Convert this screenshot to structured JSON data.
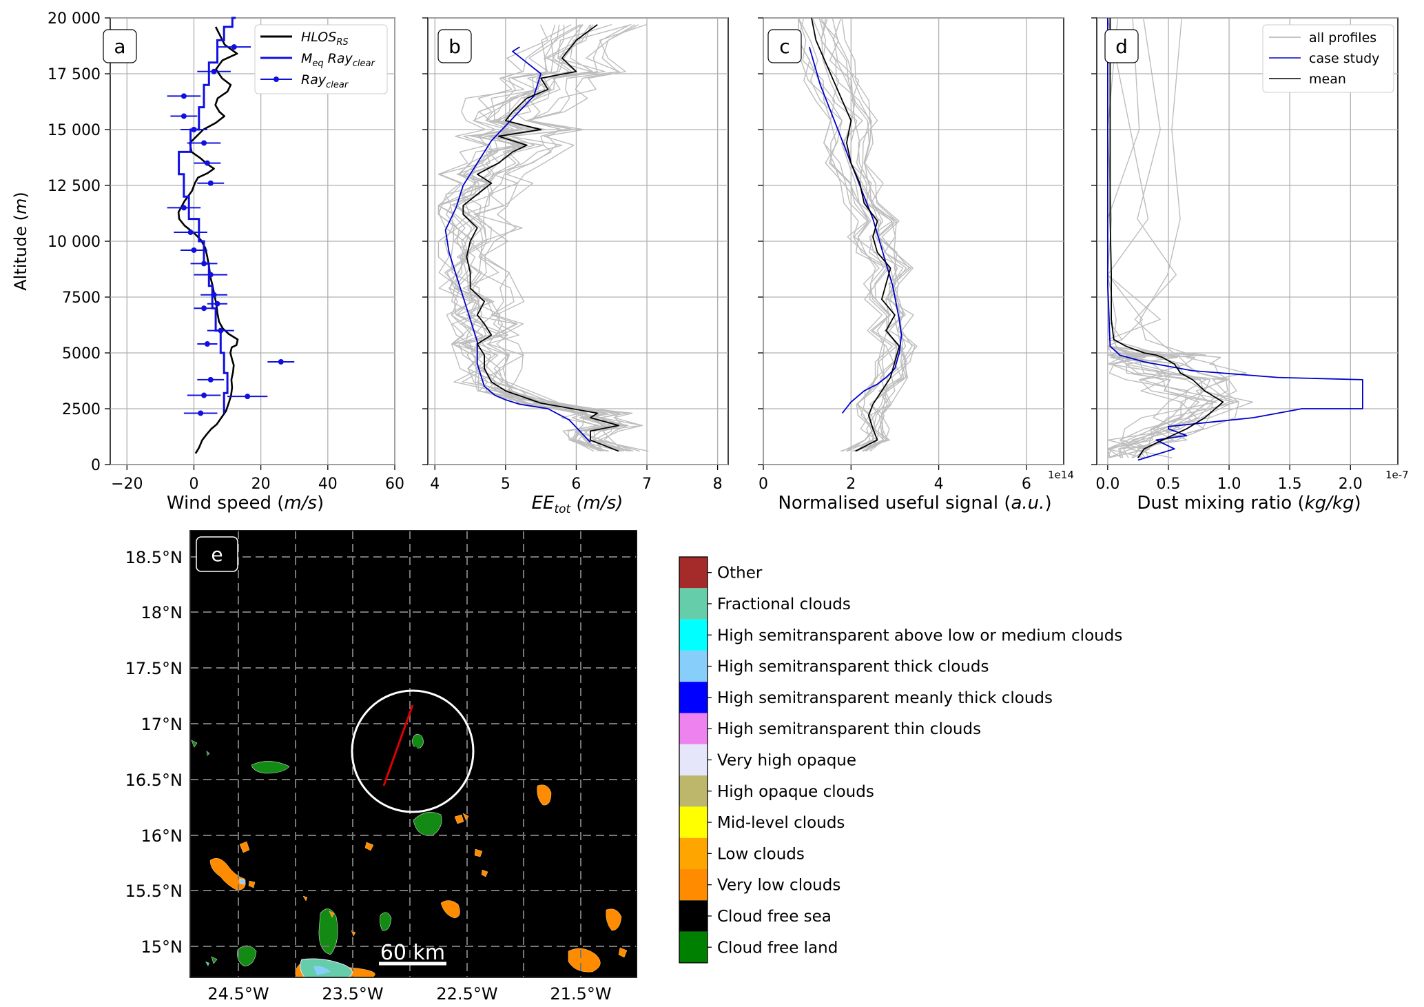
{
  "chart_data": [
    {
      "panel": "a",
      "type": "line",
      "xlabel": "Wind speed (m/s)",
      "ylabel": "Altitude (m)",
      "xlim": [
        -25,
        60
      ],
      "ylim": [
        0,
        20000
      ],
      "xticks": [
        -20,
        0,
        20,
        40,
        60
      ],
      "yticks": [
        0,
        2500,
        5000,
        7500,
        10000,
        12500,
        15000,
        17500,
        20000
      ],
      "ytick_labels": [
        "0",
        "2500",
        "5000",
        "7500",
        "10 000",
        "12 500",
        "15 000",
        "17 500",
        "20 000"
      ],
      "grid": true,
      "legend_position": "top-right",
      "series": [
        {
          "name": "HLOS_RS",
          "style": "line",
          "color": "#000000",
          "x": [
            0.5,
            1.5,
            2.5,
            3.8,
            5.2,
            6.8,
            8.2,
            9.6,
            10.5,
            11.1,
            11.4,
            11.2,
            11.7,
            11.9,
            11.4,
            10.9,
            11.3,
            12.7,
            13.1,
            10.4,
            8.6,
            7.5,
            7.0,
            6.7,
            6.1,
            5.6,
            4.9,
            4.6,
            4.0,
            3.4,
            2.1,
            0.2,
            -2.8,
            -4.4,
            -4.6,
            -2.8,
            -0.6,
            0.3,
            1.2,
            4.1,
            6.0,
            4.0,
            2.1,
            -0.7,
            -1.2,
            0.8,
            2.8,
            6.5,
            9.1,
            7.6,
            6.4,
            7.1,
            10.0,
            11.0,
            8.4,
            6.6,
            8.5,
            12.9,
            9.2,
            6.5
          ],
          "y": [
            500,
            750,
            1100,
            1350,
            1600,
            1800,
            2100,
            2400,
            2800,
            3100,
            3450,
            3800,
            4150,
            4450,
            4700,
            5000,
            5250,
            5350,
            5600,
            5850,
            6100,
            6400,
            6800,
            7200,
            7600,
            8000,
            8400,
            8800,
            9300,
            9700,
            10050,
            10350,
            10700,
            11000,
            11300,
            11800,
            12250,
            12600,
            12850,
            13050,
            13250,
            13450,
            13700,
            14000,
            14400,
            14700,
            15000,
            15300,
            15600,
            15800,
            16100,
            16400,
            16700,
            17000,
            17300,
            17700,
            18100,
            18400,
            18800,
            19600
          ]
        },
        {
          "name": "M_eq Ray_clear",
          "style": "step",
          "color": "#1010e0",
          "x": [
            9.0,
            10.0,
            9.0,
            8.0,
            6.5,
            5.5,
            4.5,
            3.0,
            1.5,
            -1.5,
            -3.0,
            -4.5,
            -1.0,
            1.5,
            3.0,
            4.5,
            7.0,
            9.0,
            11.5,
            12.5
          ],
          "y": [
            2300,
            3200,
            4100,
            5000,
            6000,
            7000,
            8000,
            9000,
            10000,
            11000,
            12000,
            13000,
            14000,
            15000,
            16000,
            17000,
            18000,
            19000,
            19600,
            20000
          ]
        },
        {
          "name": "Ray_clear",
          "style": "errorbar",
          "color": "#1010e0",
          "x": [
            2,
            3,
            16,
            26,
            5,
            4,
            8,
            3,
            7,
            6,
            5,
            3,
            0,
            -1,
            -3,
            5,
            4,
            3,
            0,
            -3,
            -3,
            6,
            12
          ],
          "y": [
            2300,
            3100,
            3050,
            4600,
            3800,
            5400,
            6000,
            7000,
            7200,
            7600,
            8500,
            9000,
            9600,
            10400,
            11500,
            12600,
            13500,
            14400,
            15000,
            15600,
            16500,
            17600,
            18700
          ],
          "xerr": [
            5,
            5,
            6,
            4,
            4,
            3,
            4,
            3,
            3,
            4,
            5,
            4,
            4,
            5,
            5,
            4,
            4,
            5,
            4,
            4,
            5,
            5,
            5
          ]
        }
      ]
    },
    {
      "panel": "b",
      "type": "line",
      "xlabel": "EE_tot (m/s)",
      "xlim": [
        3.9,
        8.15
      ],
      "ylim": [
        0,
        20000
      ],
      "xticks": [
        4,
        5,
        6,
        7,
        8
      ],
      "grid": true,
      "series": [
        {
          "name": "",
          "color": "#0000cc",
          "x": [
            6.2,
            5.9,
            5.6,
            5.2,
            5.0,
            4.85,
            4.7,
            4.6,
            4.6,
            4.5,
            4.4,
            4.3,
            4.2,
            4.15,
            4.3,
            4.4,
            4.6,
            4.8,
            5.1,
            5.4,
            5.5,
            5.1,
            5.2
          ],
          "y": [
            1000,
            2000,
            2500,
            2700,
            2900,
            3100,
            3500,
            4500,
            5500,
            6500,
            7500,
            8500,
            9500,
            10500,
            11500,
            12500,
            13500,
            14500,
            15500,
            16500,
            17500,
            18500,
            18700
          ]
        },
        {
          "name": "",
          "color": "#000000",
          "x": [
            6.6,
            6.2,
            6.2,
            6.6,
            6.2,
            6.3,
            5.5,
            5.0,
            4.8,
            4.7,
            4.7,
            4.6,
            4.8,
            4.7,
            4.6,
            4.7,
            4.5,
            4.5,
            4.45,
            4.5,
            4.6,
            4.4,
            4.4,
            4.6,
            4.8,
            4.6,
            4.9,
            5.1,
            5.3,
            4.9,
            5.5,
            5.0,
            5.1,
            5.3,
            5.6,
            5.5,
            6.0,
            5.8,
            6.0,
            6.3
          ],
          "y": [
            600,
            1100,
            1500,
            1750,
            2100,
            2300,
            2750,
            3300,
            3700,
            4300,
            4900,
            5400,
            5800,
            6300,
            6700,
            7300,
            7900,
            8600,
            9300,
            10000,
            10600,
            11200,
            11600,
            12100,
            12600,
            13000,
            13500,
            14000,
            14300,
            14700,
            15000,
            15400,
            15800,
            16400,
            16800,
            17300,
            17600,
            18200,
            19000,
            19700
          ]
        }
      ]
    },
    {
      "panel": "c",
      "type": "line",
      "xlabel": "Normalised useful signal (a.u.)",
      "xlim": [
        0,
        6.85
      ],
      "ylim": [
        0,
        20000
      ],
      "xticks": [
        0,
        2,
        4,
        6
      ],
      "x_multiplier_label": "1e14",
      "grid": true,
      "series": [
        {
          "name": "",
          "color": "#0000cc",
          "x": [
            1.8,
            2.0,
            2.3,
            2.6,
            2.8,
            3.0,
            3.1,
            3.15,
            3.1,
            3.05,
            2.95,
            2.8,
            2.65,
            2.5,
            2.3,
            2.1,
            1.9,
            1.7,
            1.5,
            1.3,
            1.05
          ],
          "y": [
            2300,
            2800,
            3300,
            3600,
            3900,
            4300,
            5000,
            5800,
            6500,
            7000,
            8000,
            9000,
            10000,
            11000,
            12000,
            13000,
            14000,
            15000,
            16000,
            17000,
            18700
          ]
        },
        {
          "name": "",
          "color": "#000000",
          "x": [
            2.1,
            2.6,
            2.5,
            2.4,
            2.5,
            2.7,
            2.9,
            3.0,
            3.1,
            2.8,
            3.0,
            2.7,
            2.8,
            2.9,
            2.6,
            2.5,
            2.6,
            2.3,
            2.2,
            2.0,
            1.9,
            2.0,
            1.8,
            1.6,
            1.4,
            1.2,
            1.1
          ],
          "y": [
            600,
            1100,
            1600,
            2200,
            2700,
            3300,
            3900,
            4600,
            5300,
            6000,
            6700,
            7400,
            8100,
            8800,
            9500,
            10200,
            10900,
            11700,
            12600,
            13500,
            14400,
            15400,
            16300,
            17200,
            18100,
            19000,
            20000
          ]
        }
      ]
    },
    {
      "panel": "d",
      "type": "line",
      "xlabel": "Dust mixing ratio (kg/kg)",
      "xlim": [
        -0.09,
        2.39
      ],
      "ylim": [
        0,
        20000
      ],
      "xticks": [
        0.0,
        0.5,
        1.0,
        1.5,
        2.0
      ],
      "xtick_labels": [
        "0.0",
        "0.5",
        "1.0",
        "1.5",
        "2.0"
      ],
      "x_multiplier_label": "1e-7",
      "grid": true,
      "legend_position": "top-right",
      "legend": [
        "all profiles",
        "case study",
        "mean"
      ],
      "series": [
        {
          "name": "case study",
          "color": "#0000cc",
          "x": [
            0.25,
            0.55,
            0.4,
            0.65,
            0.5,
            0.5,
            1.2,
            1.6,
            2.1,
            2.1,
            1.4,
            0.7,
            0.3,
            0.1,
            0.02,
            0.0,
            0.0,
            0.0
          ],
          "y": [
            200,
            700,
            1100,
            1300,
            1600,
            1700,
            2100,
            2500,
            2500,
            3800,
            3900,
            4200,
            4600,
            4900,
            5300,
            8000,
            14000,
            20000
          ]
        },
        {
          "name": "mean",
          "color": "#000000",
          "x": [
            0.25,
            0.3,
            0.45,
            0.65,
            0.8,
            0.95,
            0.8,
            0.7,
            0.6,
            0.55,
            0.45,
            0.4,
            0.3,
            0.15,
            0.05,
            0.03,
            0.03,
            0.02,
            0.02,
            0.02
          ],
          "y": [
            300,
            700,
            1100,
            1600,
            2100,
            2800,
            3300,
            3800,
            4100,
            4500,
            4800,
            4900,
            5000,
            5300,
            5600,
            6500,
            8500,
            11000,
            15000,
            20000
          ]
        }
      ]
    }
  ],
  "panel_labels": [
    "a",
    "b",
    "c",
    "d",
    "e"
  ],
  "map": {
    "lat_labels": [
      "18.5°N",
      "18°N",
      "17.5°N",
      "17°N",
      "16.5°N",
      "16°N",
      "15.5°N",
      "15°N"
    ],
    "lon_labels": [
      "24.5°W",
      "23.5°W",
      "22.5°W",
      "21.5°W"
    ],
    "scale_bar": "60 km"
  },
  "legend_a": {
    "hlos_main": "HLOS",
    "hlos_sub": "RS",
    "meq_main": "M",
    "meq_sub": "eq",
    "meq_tail": "Ray",
    "meq_tail_sub": "clear",
    "ray_main": "Ray",
    "ray_sub": "clear"
  },
  "axis_labels": {
    "a_y_main": "Altitude (",
    "a_y_unit": "m",
    "a_y_close": ")",
    "a_x_main": "Wind speed (",
    "a_x_unit": "m/s",
    "a_x_close": ")",
    "b_x_main": "EE",
    "b_x_sub": "tot",
    "b_x_unit": " (m/s)",
    "c_x_main": "Normalised useful signal (",
    "c_x_unit": "a.u.",
    "c_x_close": ")",
    "d_x_main": "Dust mixing ratio (",
    "d_x_unit": "kg/kg",
    "d_x_close": ")"
  },
  "colorbar": {
    "items": [
      {
        "label": "Other",
        "color": "#a52a2a"
      },
      {
        "label": "Fractional clouds",
        "color": "#66cdaa"
      },
      {
        "label": "High semitransparent above low or medium clouds",
        "color": "#00ffff"
      },
      {
        "label": "High semitransparent thick clouds",
        "color": "#87cefa"
      },
      {
        "label": "High semitransparent meanly thick clouds",
        "color": "#0000ff"
      },
      {
        "label": "High semitransparent thin clouds",
        "color": "#ee82ee"
      },
      {
        "label": "Very high opaque",
        "color": "#e6e6fa"
      },
      {
        "label": "High opaque clouds",
        "color": "#bdb76b"
      },
      {
        "label": "Mid-level clouds",
        "color": "#ffff00"
      },
      {
        "label": "Low clouds",
        "color": "#ffa500"
      },
      {
        "label": "Very low clouds",
        "color": "#ff8c00"
      },
      {
        "label": "Cloud free sea",
        "color": "#000000"
      },
      {
        "label": "Cloud free land",
        "color": "#008000"
      }
    ]
  }
}
